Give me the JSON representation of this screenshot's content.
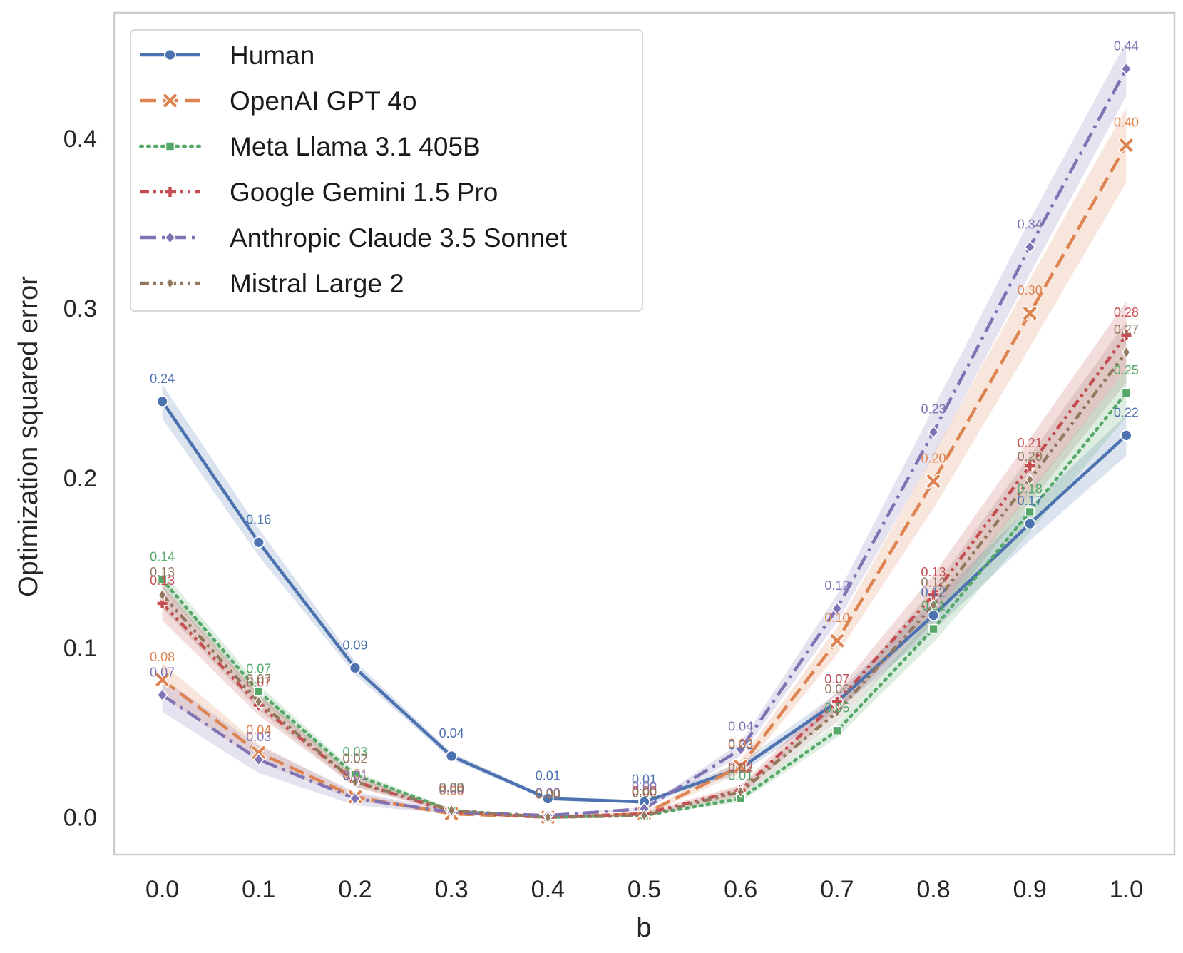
{
  "chart_data": {
    "type": "line",
    "xlabel": "b",
    "ylabel": "Optimization squared error",
    "x": [
      0.0,
      0.1,
      0.2,
      0.3,
      0.4,
      0.5,
      0.6,
      0.7,
      0.8,
      0.9,
      1.0
    ],
    "x_tick_labels": [
      "0.0",
      "0.1",
      "0.2",
      "0.3",
      "0.4",
      "0.5",
      "0.6",
      "0.7",
      "0.8",
      "0.9",
      "1.0"
    ],
    "y_ticks": [
      0.0,
      0.1,
      0.2,
      0.3,
      0.4
    ],
    "y_tick_labels": [
      "0.0",
      "0.1",
      "0.2",
      "0.3",
      "0.4"
    ],
    "xlim": [
      -0.05,
      1.05
    ],
    "ylim": [
      -0.022,
      0.474
    ],
    "grid": false,
    "legend_position": "top-left",
    "series": [
      {
        "name": "Human",
        "color": "#4c72b0",
        "dash": "solid",
        "marker": "circle",
        "values": [
          0.245,
          0.162,
          0.088,
          0.036,
          0.011,
          0.009,
          0.029,
          0.068,
          0.119,
          0.173,
          0.225
        ],
        "band": [
          0.01,
          0.008,
          0.004,
          0.002,
          0.001,
          0.001,
          0.003,
          0.005,
          0.009,
          0.01,
          0.012
        ],
        "labels": [
          "0.24",
          "0.16",
          "0.09",
          "0.04",
          "0.01",
          "0.01",
          "0.03",
          "0.07",
          "0.12",
          "0.17",
          "0.22"
        ]
      },
      {
        "name": "OpenAI GPT 4o",
        "color": "#dd8452",
        "dash": "dashed",
        "marker": "x",
        "values": [
          0.081,
          0.038,
          0.012,
          0.002,
          0.0,
          0.002,
          0.03,
          0.104,
          0.198,
          0.297,
          0.396
        ],
        "band": [
          0.01,
          0.005,
          0.002,
          0.001,
          0.0,
          0.001,
          0.004,
          0.008,
          0.016,
          0.02,
          0.022
        ],
        "labels": [
          "0.08",
          "0.04",
          "0.01",
          "0.00",
          "0.00",
          "0.00",
          "0.03",
          "0.10",
          "0.20",
          "0.30",
          "0.40"
        ]
      },
      {
        "name": "Meta Llama 3.1 405B",
        "color": "#55a868",
        "dash": "dotted",
        "marker": "square",
        "values": [
          0.14,
          0.074,
          0.025,
          0.004,
          0.0,
          0.001,
          0.011,
          0.051,
          0.111,
          0.18,
          0.25
        ],
        "band": [
          0.005,
          0.004,
          0.002,
          0.001,
          0.0,
          0.0,
          0.002,
          0.004,
          0.008,
          0.012,
          0.014
        ],
        "labels": [
          "0.14",
          "0.07",
          "0.03",
          "0.00",
          "0.00",
          "0.00",
          "0.01",
          "0.05",
          "0.11",
          "0.18",
          "0.25"
        ]
      },
      {
        "name": "Google Gemini 1.5 Pro",
        "color": "#c44e52",
        "dash": "dashdotdot",
        "marker": "plus",
        "values": [
          0.126,
          0.066,
          0.021,
          0.003,
          0.0,
          0.002,
          0.016,
          0.068,
          0.131,
          0.207,
          0.284
        ],
        "band": [
          0.01,
          0.006,
          0.003,
          0.001,
          0.0,
          0.001,
          0.003,
          0.006,
          0.012,
          0.016,
          0.02
        ],
        "labels": [
          "0.13",
          "0.07",
          "0.02",
          "0.00",
          "0.00",
          "0.00",
          "0.02",
          "0.07",
          "0.13",
          "0.21",
          "0.28"
        ]
      },
      {
        "name": "Anthropic Claude 3.5 Sonnet",
        "color": "#8172b3",
        "dash": "dashdot",
        "marker": "diamond",
        "values": [
          0.072,
          0.034,
          0.011,
          0.003,
          0.001,
          0.005,
          0.04,
          0.123,
          0.227,
          0.336,
          0.441
        ],
        "band": [
          0.01,
          0.008,
          0.004,
          0.001,
          0.0,
          0.001,
          0.004,
          0.008,
          0.014,
          0.016,
          0.016
        ],
        "labels": [
          "0.07",
          "0.03",
          "0.01",
          "0.00",
          "0.00",
          "0.00",
          "0.04",
          "0.12",
          "0.23",
          "0.34",
          "0.44"
        ]
      },
      {
        "name": "Mistral Large 2",
        "color": "#937860",
        "dash": "dashdotdot",
        "marker": "thin-diamond",
        "values": [
          0.131,
          0.068,
          0.021,
          0.004,
          0.0,
          0.001,
          0.015,
          0.062,
          0.125,
          0.199,
          0.274
        ],
        "band": [
          0.008,
          0.005,
          0.003,
          0.001,
          0.0,
          0.0,
          0.003,
          0.006,
          0.01,
          0.014,
          0.018
        ],
        "labels": [
          "0.13",
          "0.07",
          "0.02",
          "0.00",
          "0.00",
          "0.00",
          "0.02",
          "0.06",
          "0.12",
          "0.20",
          "0.27"
        ]
      }
    ]
  }
}
